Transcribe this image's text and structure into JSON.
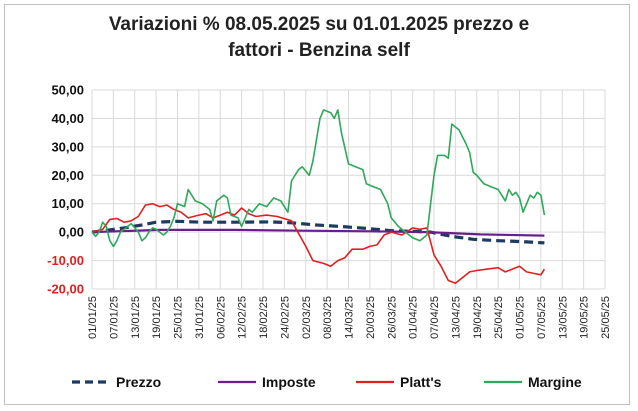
{
  "chart_data": {
    "type": "line",
    "title_line1": "Variazioni % 08.05.2025 su 01.01.2025 prezzo e",
    "title_line2": "fattori - Benzina self",
    "xlabel": "",
    "ylabel": "",
    "ylim": [
      -20,
      50
    ],
    "y_ticks": [
      50,
      40,
      30,
      20,
      10,
      0,
      -10,
      -20
    ],
    "y_tick_labels": [
      "50,00",
      "40,00",
      "30,00",
      "20,00",
      "10,00",
      "0,00",
      "-10,00",
      "-20,00"
    ],
    "x_tick_dates": [
      "2025-01-01",
      "2025-01-07",
      "2025-01-13",
      "2025-01-19",
      "2025-01-25",
      "2025-01-31",
      "2025-02-06",
      "2025-02-12",
      "2025-02-18",
      "2025-02-24",
      "2025-03-02",
      "2025-03-08",
      "2025-03-14",
      "2025-03-20",
      "2025-03-26",
      "2025-04-01",
      "2025-04-07",
      "2025-04-13",
      "2025-04-19",
      "2025-04-25",
      "2025-05-01",
      "2025-05-07",
      "2025-05-13",
      "2025-05-19",
      "2025-05-25"
    ],
    "x_tick_labels": [
      "01/01/25",
      "07/01/25",
      "13/01/25",
      "19/01/25",
      "25/01/25",
      "31/01/25",
      "06/02/25",
      "12/02/25",
      "18/02/25",
      "24/02/25",
      "02/03/25",
      "08/03/25",
      "14/03/25",
      "20/03/25",
      "26/03/25",
      "01/04/25",
      "07/04/25",
      "13/04/25",
      "19/04/25",
      "25/04/25",
      "01/05/25",
      "07/05/25",
      "13/05/25",
      "19/05/25",
      "25/05/25"
    ],
    "grid": true,
    "legend_position": "bottom",
    "series": [
      {
        "name": "Prezzo",
        "color": "#1f3a5f",
        "dashed": true,
        "points": [
          [
            "2025-01-01",
            0
          ],
          [
            "2025-01-05",
            0.6
          ],
          [
            "2025-01-10",
            1.5
          ],
          [
            "2025-01-15",
            2.5
          ],
          [
            "2025-01-19",
            3.5
          ],
          [
            "2025-01-25",
            3.8
          ],
          [
            "2025-02-01",
            3.5
          ],
          [
            "2025-02-10",
            3.5
          ],
          [
            "2025-02-20",
            3.6
          ],
          [
            "2025-02-26",
            3.3
          ],
          [
            "2025-03-05",
            2.5
          ],
          [
            "2025-03-12",
            2.0
          ],
          [
            "2025-03-19",
            1.3
          ],
          [
            "2025-03-26",
            0.5
          ],
          [
            "2025-04-01",
            0.3
          ],
          [
            "2025-04-06",
            0
          ],
          [
            "2025-04-12",
            -1.5
          ],
          [
            "2025-04-18",
            -2.5
          ],
          [
            "2025-04-25",
            -3.0
          ],
          [
            "2025-05-01",
            -3.3
          ],
          [
            "2025-05-08",
            -3.8
          ]
        ]
      },
      {
        "name": "Imposte",
        "color": "#6a1e8c",
        "dashed": false,
        "points": [
          [
            "2025-01-01",
            0
          ],
          [
            "2025-01-20",
            0.8
          ],
          [
            "2025-02-10",
            0.8
          ],
          [
            "2025-03-01",
            0.5
          ],
          [
            "2025-03-20",
            0.3
          ],
          [
            "2025-04-05",
            0
          ],
          [
            "2025-04-20",
            -0.8
          ],
          [
            "2025-05-08",
            -1.2
          ]
        ]
      },
      {
        "name": "Platt's",
        "color": "#e02020",
        "dashed": false,
        "points": [
          [
            "2025-01-01",
            0
          ],
          [
            "2025-01-04",
            1
          ],
          [
            "2025-01-06",
            4.5
          ],
          [
            "2025-01-08",
            4.8
          ],
          [
            "2025-01-10",
            3.5
          ],
          [
            "2025-01-12",
            4
          ],
          [
            "2025-01-14",
            5.5
          ],
          [
            "2025-01-16",
            9.5
          ],
          [
            "2025-01-18",
            10
          ],
          [
            "2025-01-20",
            9
          ],
          [
            "2025-01-22",
            9.5
          ],
          [
            "2025-01-24",
            8
          ],
          [
            "2025-01-26",
            7
          ],
          [
            "2025-01-28",
            5
          ],
          [
            "2025-01-31",
            6
          ],
          [
            "2025-02-02",
            6.5
          ],
          [
            "2025-02-04",
            5
          ],
          [
            "2025-02-06",
            6
          ],
          [
            "2025-02-08",
            7
          ],
          [
            "2025-02-10",
            6
          ],
          [
            "2025-02-12",
            8.5
          ],
          [
            "2025-02-14",
            6.5
          ],
          [
            "2025-02-16",
            5.5
          ],
          [
            "2025-02-19",
            6
          ],
          [
            "2025-02-22",
            5.5
          ],
          [
            "2025-02-26",
            4
          ],
          [
            "2025-03-02",
            -5
          ],
          [
            "2025-03-04",
            -10
          ],
          [
            "2025-03-07",
            -11
          ],
          [
            "2025-03-09",
            -12
          ],
          [
            "2025-03-11",
            -10
          ],
          [
            "2025-03-13",
            -9
          ],
          [
            "2025-03-15",
            -6
          ],
          [
            "2025-03-18",
            -6
          ],
          [
            "2025-03-20",
            -5
          ],
          [
            "2025-03-22",
            -4.5
          ],
          [
            "2025-03-24",
            -1
          ],
          [
            "2025-03-26",
            0
          ],
          [
            "2025-03-29",
            -1
          ],
          [
            "2025-04-01",
            1.5
          ],
          [
            "2025-04-03",
            1
          ],
          [
            "2025-04-05",
            1.5
          ],
          [
            "2025-04-07",
            -8
          ],
          [
            "2025-04-09",
            -12
          ],
          [
            "2025-04-11",
            -17
          ],
          [
            "2025-04-13",
            -18
          ],
          [
            "2025-04-15",
            -16
          ],
          [
            "2025-04-17",
            -14
          ],
          [
            "2025-04-19",
            -13.5
          ],
          [
            "2025-04-22",
            -13
          ],
          [
            "2025-04-25",
            -12.5
          ],
          [
            "2025-04-27",
            -14
          ],
          [
            "2025-04-29",
            -13
          ],
          [
            "2025-05-01",
            -12
          ],
          [
            "2025-05-03",
            -14
          ],
          [
            "2025-05-05",
            -14.5
          ],
          [
            "2025-05-07",
            -15
          ],
          [
            "2025-05-08",
            -13
          ]
        ]
      },
      {
        "name": "Margine",
        "color": "#2ea85a",
        "dashed": false,
        "points": [
          [
            "2025-01-01",
            0
          ],
          [
            "2025-01-02",
            -1.5
          ],
          [
            "2025-01-03",
            0
          ],
          [
            "2025-01-04",
            3.5
          ],
          [
            "2025-01-05",
            2
          ],
          [
            "2025-01-06",
            -3
          ],
          [
            "2025-01-07",
            -5
          ],
          [
            "2025-01-08",
            -3
          ],
          [
            "2025-01-09",
            0
          ],
          [
            "2025-01-10",
            1
          ],
          [
            "2025-01-11",
            2
          ],
          [
            "2025-01-12",
            3
          ],
          [
            "2025-01-13",
            1.5
          ],
          [
            "2025-01-14",
            0
          ],
          [
            "2025-01-15",
            -3
          ],
          [
            "2025-01-16",
            -2
          ],
          [
            "2025-01-17",
            0
          ],
          [
            "2025-01-18",
            1.5
          ],
          [
            "2025-01-19",
            1
          ],
          [
            "2025-01-20",
            0
          ],
          [
            "2025-01-21",
            -1
          ],
          [
            "2025-01-22",
            0
          ],
          [
            "2025-01-23",
            2
          ],
          [
            "2025-01-24",
            5
          ],
          [
            "2025-01-25",
            10
          ],
          [
            "2025-01-27",
            9
          ],
          [
            "2025-01-28",
            15
          ],
          [
            "2025-01-30",
            11
          ],
          [
            "2025-02-01",
            10
          ],
          [
            "2025-02-03",
            8
          ],
          [
            "2025-02-04",
            4
          ],
          [
            "2025-02-05",
            11
          ],
          [
            "2025-02-07",
            13
          ],
          [
            "2025-02-08",
            12
          ],
          [
            "2025-02-09",
            6
          ],
          [
            "2025-02-11",
            5
          ],
          [
            "2025-02-12",
            2
          ],
          [
            "2025-02-14",
            8
          ],
          [
            "2025-02-15",
            7
          ],
          [
            "2025-02-17",
            10
          ],
          [
            "2025-02-19",
            9
          ],
          [
            "2025-02-21",
            12
          ],
          [
            "2025-02-23",
            11
          ],
          [
            "2025-02-25",
            7
          ],
          [
            "2025-02-26",
            18
          ],
          [
            "2025-02-28",
            22
          ],
          [
            "2025-03-01",
            23
          ],
          [
            "2025-03-03",
            20
          ],
          [
            "2025-03-04",
            25
          ],
          [
            "2025-03-06",
            40
          ],
          [
            "2025-03-07",
            43
          ],
          [
            "2025-03-09",
            42
          ],
          [
            "2025-03-10",
            40
          ],
          [
            "2025-03-11",
            43
          ],
          [
            "2025-03-12",
            35
          ],
          [
            "2025-03-14",
            24
          ],
          [
            "2025-03-16",
            23
          ],
          [
            "2025-03-18",
            22
          ],
          [
            "2025-03-19",
            17
          ],
          [
            "2025-03-21",
            16
          ],
          [
            "2025-03-23",
            15
          ],
          [
            "2025-03-25",
            10
          ],
          [
            "2025-03-26",
            5
          ],
          [
            "2025-03-28",
            2
          ],
          [
            "2025-03-30",
            0
          ],
          [
            "2025-04-01",
            -2
          ],
          [
            "2025-04-03",
            -3
          ],
          [
            "2025-04-05",
            -1
          ],
          [
            "2025-04-07",
            20
          ],
          [
            "2025-04-08",
            27
          ],
          [
            "2025-04-10",
            27
          ],
          [
            "2025-04-11",
            26
          ],
          [
            "2025-04-12",
            38
          ],
          [
            "2025-04-14",
            36
          ],
          [
            "2025-04-16",
            31
          ],
          [
            "2025-04-17",
            28
          ],
          [
            "2025-04-18",
            21
          ],
          [
            "2025-04-19",
            20
          ],
          [
            "2025-04-21",
            17
          ],
          [
            "2025-04-23",
            16
          ],
          [
            "2025-04-25",
            15
          ],
          [
            "2025-04-26",
            13
          ],
          [
            "2025-04-27",
            11
          ],
          [
            "2025-04-28",
            15
          ],
          [
            "2025-04-29",
            13
          ],
          [
            "2025-04-30",
            14
          ],
          [
            "2025-05-01",
            12
          ],
          [
            "2025-05-02",
            7
          ],
          [
            "2025-05-03",
            10
          ],
          [
            "2025-05-04",
            13
          ],
          [
            "2025-05-05",
            12
          ],
          [
            "2025-05-06",
            14
          ],
          [
            "2025-05-07",
            13
          ],
          [
            "2025-05-08",
            6
          ]
        ]
      }
    ]
  }
}
